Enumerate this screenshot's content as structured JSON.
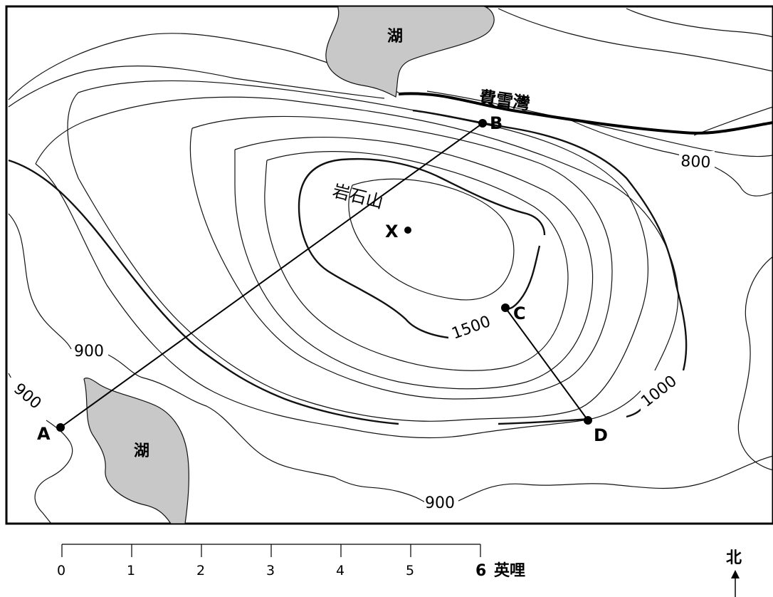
{
  "lakes": [
    {
      "label": "湖"
    },
    {
      "label": "湖"
    }
  ],
  "river": {
    "label": "費雪灣"
  },
  "mountain": {
    "label": "岩石山"
  },
  "points": {
    "A": "A",
    "B": "B",
    "C": "C",
    "D": "D",
    "X": "X"
  },
  "elevations": {
    "e800": "800",
    "e900_left": "900",
    "e900_left2": "900",
    "e900_bottom": "900",
    "e1000": "1000",
    "e1500": "1500"
  },
  "scale": {
    "ticks": [
      "0",
      "1",
      "2",
      "3",
      "4",
      "5",
      "6"
    ],
    "unit": "英哩"
  },
  "north": {
    "label": "北"
  }
}
